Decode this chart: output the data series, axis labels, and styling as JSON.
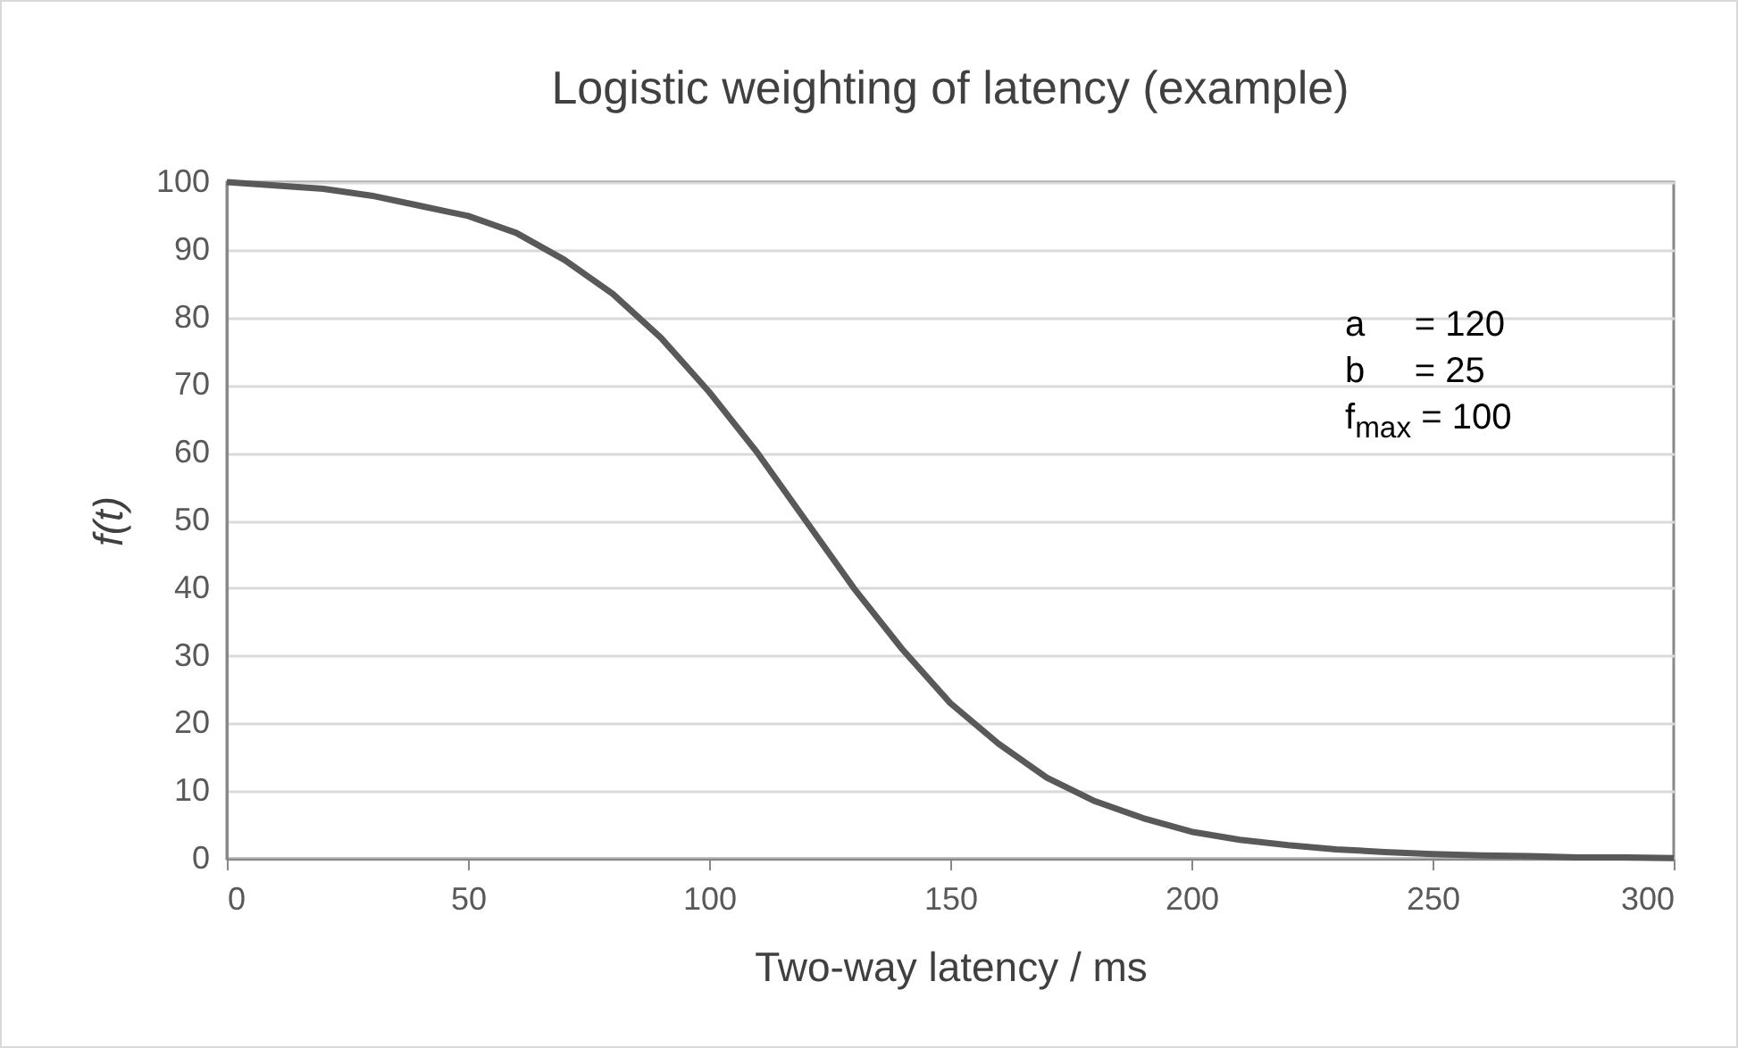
{
  "chart_data": {
    "type": "line",
    "title": "Logistic weighting of latency (example)",
    "xlabel": "Two-way latency / ms",
    "ylabel": "f(t)",
    "x": [
      0,
      10,
      20,
      30,
      40,
      50,
      60,
      70,
      80,
      90,
      100,
      110,
      120,
      130,
      140,
      150,
      160,
      170,
      180,
      190,
      200,
      210,
      220,
      230,
      240,
      250,
      260,
      270,
      280,
      290,
      300
    ],
    "series": [
      {
        "color": "#595959",
        "values": [
          100,
          99.5,
          99,
          98,
          96.5,
          95,
          92.5,
          88.5,
          83.5,
          77,
          69,
          60,
          50,
          40,
          31,
          23,
          17,
          12,
          8.5,
          6,
          4,
          2.8,
          2,
          1.4,
          1,
          0.7,
          0.5,
          0.4,
          0.2,
          0.2,
          0.1
        ]
      }
    ],
    "xlim": [
      0,
      300
    ],
    "xticks": [
      0,
      50,
      100,
      150,
      200,
      250,
      300
    ],
    "ylim": [
      0,
      100
    ],
    "yticks": [
      0,
      10,
      20,
      30,
      40,
      50,
      60,
      70,
      80,
      90,
      100
    ],
    "grid": "y",
    "legend": false,
    "marker": "none",
    "line_style": "solid",
    "annotations": [
      "a     = 120",
      "b     = 25",
      "f$_{max}$ = 100"
    ]
  }
}
